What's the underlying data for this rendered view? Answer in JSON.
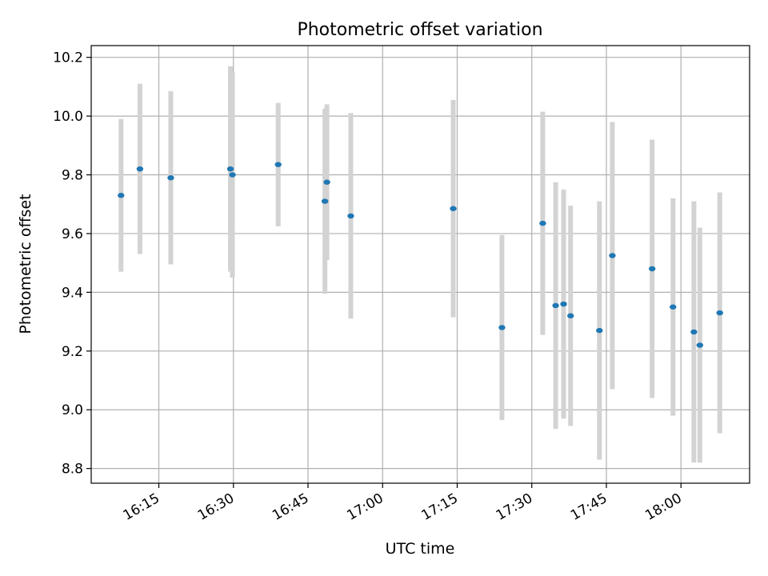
{
  "chart_data": {
    "type": "scatter",
    "title": "Photometric offset variation",
    "xlabel": "UTC time",
    "ylabel": "Photometric offset",
    "grid": true,
    "xlim": [
      "16:01:24",
      "18:13:48"
    ],
    "ylim": [
      8.75,
      10.24
    ],
    "xticks": [
      "16:15",
      "16:30",
      "16:45",
      "17:00",
      "17:15",
      "17:30",
      "17:45",
      "18:00"
    ],
    "yticks": [
      "8.8",
      "9.0",
      "9.2",
      "9.4",
      "9.6",
      "9.8",
      "10.0",
      "10.2"
    ],
    "points_color": "#1f77b4",
    "errorbar_color": "#d3d3d3",
    "series": [
      {
        "x": [
          "16:07:24",
          "16:11:12",
          "16:17:24",
          "16:29:24",
          "16:29:48",
          "16:39:00",
          "16:48:24",
          "16:48:48",
          "16:53:36",
          "17:14:12",
          "17:24:00",
          "17:32:12",
          "17:34:48",
          "17:36:24",
          "17:37:48",
          "17:43:36",
          "17:46:12",
          "17:54:12",
          "17:58:24",
          "18:02:36",
          "18:03:48",
          "18:07:48"
        ],
        "y": [
          9.73,
          9.82,
          9.79,
          9.82,
          9.8,
          9.835,
          9.71,
          9.775,
          9.66,
          9.685,
          9.28,
          9.635,
          9.355,
          9.36,
          9.32,
          9.27,
          9.525,
          9.48,
          9.35,
          9.265,
          9.22,
          9.33
        ],
        "error": [
          0.26,
          0.29,
          0.295,
          0.35,
          0.35,
          0.21,
          0.315,
          0.265,
          0.35,
          0.37,
          0.315,
          0.38,
          0.42,
          0.39,
          0.375,
          0.44,
          0.455,
          0.44,
          0.37,
          0.445,
          0.4,
          0.41
        ]
      }
    ]
  }
}
